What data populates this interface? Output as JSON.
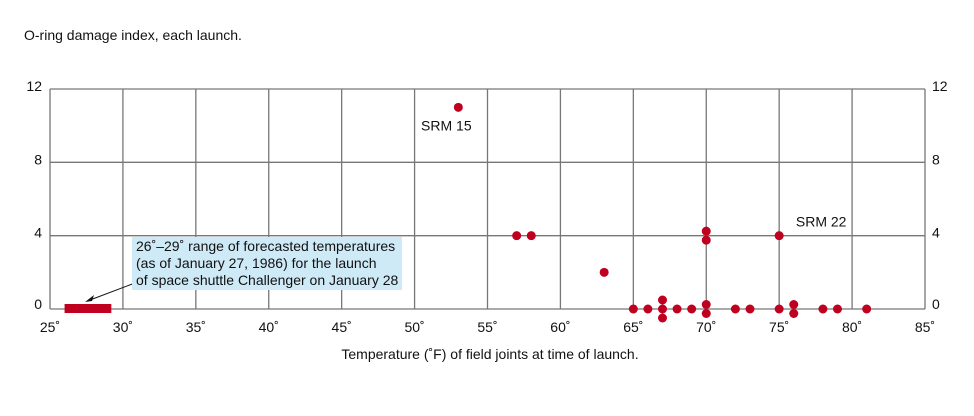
{
  "chart_data": {
    "type": "scatter",
    "ylabel": "O-ring damage index, each launch.",
    "xlabel": "Temperature (˚F) of field joints at time of launch.",
    "xlim": [
      25,
      85
    ],
    "ylim": [
      0,
      12
    ],
    "xticks": [
      "25˚",
      "30˚",
      "35˚",
      "40˚",
      "45˚",
      "50˚",
      "55˚",
      "60˚",
      "65˚",
      "70˚",
      "75˚",
      "80˚",
      "85˚"
    ],
    "xtick_values": [
      25,
      30,
      35,
      40,
      45,
      50,
      55,
      60,
      65,
      70,
      75,
      80,
      85
    ],
    "yticks": [
      "0",
      "4",
      "8",
      "12"
    ],
    "ytick_values": [
      0,
      4,
      8,
      12
    ],
    "grid": true,
    "points": [
      [
        53,
        11
      ],
      [
        57,
        4
      ],
      [
        58,
        4
      ],
      [
        63,
        2
      ],
      [
        70,
        4
      ],
      [
        70,
        4
      ],
      [
        75,
        4
      ],
      [
        65,
        0
      ],
      [
        66,
        0
      ],
      [
        67,
        0
      ],
      [
        67,
        0
      ],
      [
        67,
        0
      ],
      [
        68,
        0
      ],
      [
        69,
        0
      ],
      [
        70,
        0
      ],
      [
        70,
        0
      ],
      [
        72,
        0
      ],
      [
        73,
        0
      ],
      [
        75,
        0
      ],
      [
        76,
        0
      ],
      [
        76,
        0
      ],
      [
        78,
        0
      ],
      [
        79,
        0
      ],
      [
        81,
        0
      ]
    ],
    "point_labels": [
      {
        "text": "SRM 15",
        "x": 53,
        "y": 11
      },
      {
        "text": "SRM 22",
        "x": 75,
        "y": 4
      }
    ],
    "forecast_range": [
      26,
      29
    ],
    "annotation": [
      "26˚–29˚ range of forecasted temperatures",
      "(as of January 27, 1986) for the launch",
      "of space shuttle Challenger on January 28"
    ],
    "colors": {
      "point": "#c0001f",
      "grid": "#777777",
      "note_bg": "#cfeaf7"
    }
  }
}
